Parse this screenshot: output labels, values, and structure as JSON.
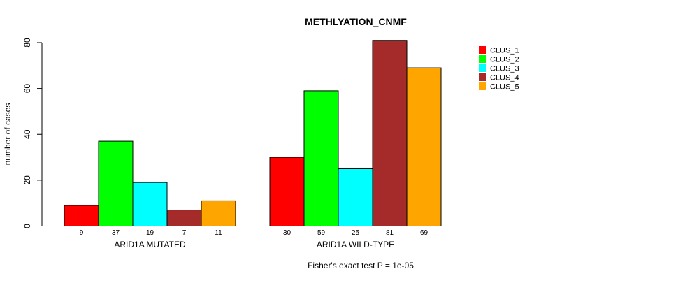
{
  "chart_data": {
    "type": "bar",
    "title": "METHLYATION_CNMF",
    "ylabel": "number of cases",
    "xlabel": "",
    "footnote": "Fisher's exact test P = 1e-05",
    "ylim": [
      0,
      80
    ],
    "yticks": [
      0,
      20,
      40,
      60,
      80
    ],
    "grid": false,
    "legend_position": "top-right",
    "groups": [
      "ARID1A MUTATED",
      "ARID1A WILD-TYPE"
    ],
    "series": [
      {
        "name": "CLUS_1",
        "color": "#ff0000",
        "values": [
          9,
          30
        ]
      },
      {
        "name": "CLUS_2",
        "color": "#00ff00",
        "values": [
          37,
          59
        ]
      },
      {
        "name": "CLUS_3",
        "color": "#00ffff",
        "values": [
          19,
          25
        ]
      },
      {
        "name": "CLUS_4",
        "color": "#a52a2a",
        "values": [
          7,
          81
        ]
      },
      {
        "name": "CLUS_5",
        "color": "#ffa500",
        "values": [
          11,
          69
        ]
      }
    ]
  }
}
